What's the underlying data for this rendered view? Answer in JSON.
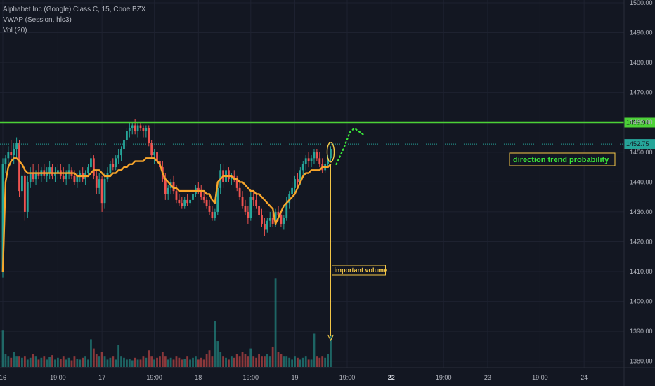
{
  "legend": {
    "symbol": "Alphabet Inc (Google) Class C, 15, Cboe BZX",
    "vwap": "VWAP (Session, hlc3)",
    "vol": "Vol (20)"
  },
  "colors": {
    "background": "#131722",
    "up": "#26a69a",
    "down": "#ef5350",
    "vwap": "#f7a52b",
    "resistance": "#4cd137",
    "dotted_level": "#26a69a",
    "annotation_green": "#39e639",
    "annotation_yellow": "#f7c948"
  },
  "chart_data": {
    "type": "candlestick",
    "price_axis": {
      "ylim": [
        1379,
        1500
      ],
      "ticks": [
        1380,
        1390,
        1400,
        1410,
        1420,
        1430,
        1440,
        1450,
        1460,
        1470,
        1480,
        1490,
        1500
      ],
      "tick_labels": [
        "1380.00",
        "1390.00",
        "1400.00",
        "1410.00",
        "1420.00",
        "1430.00",
        "1440.00",
        "1450.00",
        "1460.00",
        "1470.00",
        "1480.00",
        "1490.00",
        "1500.00"
      ]
    },
    "time_axis": {
      "ticks": [
        {
          "label": "16",
          "bold": false,
          "bar": 0
        },
        {
          "label": "19:00",
          "bold": false,
          "bar": 20
        },
        {
          "label": "17",
          "bold": false,
          "bar": 36
        },
        {
          "label": "19:00",
          "bold": false,
          "bar": 55
        },
        {
          "label": "18",
          "bold": false,
          "bar": 71
        },
        {
          "label": "19:00",
          "bold": false,
          "bar": 90
        },
        {
          "label": "19",
          "bold": false,
          "bar": 106
        },
        {
          "label": "19:00",
          "bold": false,
          "bar": 125
        },
        {
          "label": "22",
          "bold": true,
          "bar": 141
        },
        {
          "label": "19:00",
          "bold": false,
          "bar": 160
        },
        {
          "label": "23",
          "bold": false,
          "bar": 176
        },
        {
          "label": "19:00",
          "bold": false,
          "bar": 195
        },
        {
          "label": "24",
          "bold": false,
          "bar": 211
        }
      ]
    },
    "levels": [
      {
        "name": "resistance",
        "price": 1459.94,
        "label": "1459.94",
        "style": "solid"
      },
      {
        "name": "last",
        "price": 1452.75,
        "label": "1452.75",
        "style": "dotted"
      }
    ],
    "candles": [
      [
        1410,
        1448,
        1408,
        1446
      ],
      [
        1446,
        1449,
        1443,
        1448
      ],
      [
        1448,
        1452,
        1445,
        1450
      ],
      [
        1450,
        1454,
        1447,
        1449
      ],
      [
        1449,
        1453,
        1446,
        1451
      ],
      [
        1451,
        1455,
        1448,
        1453
      ],
      [
        1453,
        1454,
        1435,
        1437
      ],
      [
        1437,
        1445,
        1435,
        1442
      ],
      [
        1442,
        1445,
        1427,
        1430
      ],
      [
        1430,
        1442,
        1428,
        1440
      ],
      [
        1440,
        1445,
        1438,
        1443
      ],
      [
        1443,
        1446,
        1440,
        1441
      ],
      [
        1441,
        1444,
        1439,
        1443
      ],
      [
        1443,
        1446,
        1441,
        1442
      ],
      [
        1442,
        1445,
        1440,
        1444
      ],
      [
        1444,
        1446,
        1441,
        1442
      ],
      [
        1442,
        1445,
        1440,
        1443
      ],
      [
        1443,
        1447,
        1441,
        1445
      ],
      [
        1445,
        1446,
        1441,
        1442
      ],
      [
        1442,
        1445,
        1440,
        1443
      ],
      [
        1443,
        1446,
        1441,
        1444
      ],
      [
        1444,
        1446,
        1441,
        1442
      ],
      [
        1442,
        1445,
        1440,
        1441
      ],
      [
        1441,
        1444,
        1439,
        1443
      ],
      [
        1443,
        1446,
        1441,
        1444
      ],
      [
        1444,
        1445,
        1441,
        1442
      ],
      [
        1442,
        1444,
        1439,
        1440
      ],
      [
        1440,
        1443,
        1438,
        1442
      ],
      [
        1442,
        1444,
        1440,
        1443
      ],
      [
        1443,
        1445,
        1440,
        1441
      ],
      [
        1441,
        1444,
        1439,
        1443
      ],
      [
        1443,
        1446,
        1442,
        1445
      ],
      [
        1445,
        1450,
        1444,
        1448
      ],
      [
        1448,
        1449,
        1441,
        1442
      ],
      [
        1442,
        1444,
        1436,
        1438
      ],
      [
        1438,
        1443,
        1436,
        1441
      ],
      [
        1441,
        1442,
        1430,
        1433
      ],
      [
        1433,
        1443,
        1431,
        1441
      ],
      [
        1441,
        1445,
        1440,
        1443
      ],
      [
        1443,
        1447,
        1442,
        1446
      ],
      [
        1446,
        1448,
        1444,
        1445
      ],
      [
        1445,
        1449,
        1444,
        1448
      ],
      [
        1448,
        1451,
        1446,
        1449
      ],
      [
        1449,
        1452,
        1447,
        1451
      ],
      [
        1451,
        1455,
        1449,
        1454
      ],
      [
        1454,
        1458,
        1452,
        1457
      ],
      [
        1457,
        1460,
        1455,
        1458
      ],
      [
        1458,
        1460,
        1456,
        1459
      ],
      [
        1459,
        1461,
        1456,
        1457
      ],
      [
        1457,
        1460,
        1455,
        1459
      ],
      [
        1459,
        1460,
        1457,
        1458
      ],
      [
        1458,
        1459,
        1455,
        1457
      ],
      [
        1457,
        1459,
        1455,
        1458
      ],
      [
        1458,
        1459,
        1452,
        1453
      ],
      [
        1453,
        1454,
        1448,
        1449
      ],
      [
        1449,
        1451,
        1446,
        1450
      ],
      [
        1450,
        1451,
        1446,
        1447
      ],
      [
        1447,
        1449,
        1444,
        1445
      ],
      [
        1445,
        1447,
        1440,
        1441
      ],
      [
        1441,
        1443,
        1434,
        1436
      ],
      [
        1436,
        1439,
        1434,
        1438
      ],
      [
        1438,
        1441,
        1436,
        1440
      ],
      [
        1440,
        1442,
        1436,
        1437
      ],
      [
        1437,
        1439,
        1433,
        1434
      ],
      [
        1434,
        1436,
        1432,
        1433
      ],
      [
        1433,
        1435,
        1431,
        1432
      ],
      [
        1432,
        1435,
        1431,
        1434
      ],
      [
        1434,
        1436,
        1432,
        1433
      ],
      [
        1433,
        1435,
        1432,
        1434
      ],
      [
        1434,
        1437,
        1433,
        1436
      ],
      [
        1436,
        1439,
        1435,
        1438
      ],
      [
        1438,
        1440,
        1436,
        1437
      ],
      [
        1437,
        1439,
        1434,
        1435
      ],
      [
        1435,
        1437,
        1433,
        1434
      ],
      [
        1434,
        1435,
        1431,
        1432
      ],
      [
        1432,
        1434,
        1429,
        1430
      ],
      [
        1430,
        1432,
        1427,
        1428
      ],
      [
        1428,
        1431,
        1427,
        1430
      ],
      [
        1430,
        1440,
        1429,
        1438
      ],
      [
        1438,
        1446,
        1436,
        1444
      ],
      [
        1444,
        1446,
        1438,
        1440
      ],
      [
        1440,
        1446,
        1439,
        1444
      ],
      [
        1444,
        1445,
        1440,
        1441
      ],
      [
        1441,
        1443,
        1439,
        1442
      ],
      [
        1442,
        1444,
        1440,
        1441
      ],
      [
        1441,
        1442,
        1437,
        1438
      ],
      [
        1438,
        1440,
        1434,
        1435
      ],
      [
        1435,
        1437,
        1431,
        1432
      ],
      [
        1432,
        1434,
        1429,
        1430
      ],
      [
        1430,
        1432,
        1426,
        1428
      ],
      [
        1428,
        1437,
        1427,
        1435
      ],
      [
        1435,
        1437,
        1432,
        1434
      ],
      [
        1434,
        1436,
        1431,
        1432
      ],
      [
        1432,
        1434,
        1428,
        1429
      ],
      [
        1429,
        1431,
        1425,
        1426
      ],
      [
        1426,
        1428,
        1422,
        1424
      ],
      [
        1424,
        1428,
        1423,
        1427
      ],
      [
        1427,
        1430,
        1425,
        1428
      ],
      [
        1428,
        1430,
        1425,
        1426
      ],
      [
        1426,
        1431,
        1425,
        1430
      ],
      [
        1430,
        1432,
        1427,
        1429
      ],
      [
        1429,
        1430,
        1425,
        1426
      ],
      [
        1426,
        1429,
        1424,
        1428
      ],
      [
        1428,
        1435,
        1427,
        1433
      ],
      [
        1433,
        1437,
        1431,
        1436
      ],
      [
        1436,
        1440,
        1434,
        1438
      ],
      [
        1438,
        1442,
        1436,
        1441
      ],
      [
        1441,
        1443,
        1438,
        1440
      ],
      [
        1440,
        1445,
        1439,
        1444
      ],
      [
        1444,
        1447,
        1442,
        1446
      ],
      [
        1446,
        1449,
        1444,
        1448
      ],
      [
        1448,
        1450,
        1445,
        1447
      ],
      [
        1447,
        1449,
        1445,
        1448
      ],
      [
        1448,
        1451,
        1446,
        1450
      ],
      [
        1450,
        1451,
        1447,
        1448
      ],
      [
        1448,
        1450,
        1445,
        1446
      ],
      [
        1446,
        1448,
        1443,
        1444
      ],
      [
        1444,
        1447,
        1443,
        1446
      ],
      [
        1446,
        1449,
        1445,
        1448
      ],
      [
        1448,
        1452,
        1447,
        1451
      ]
    ],
    "vwap_note": "session VWAP plotted per candle",
    "vwap": [
      1410,
      1440,
      1445,
      1447,
      1448,
      1448,
      1447,
      1446,
      1444,
      1443,
      1443,
      1443,
      1443,
      1443,
      1443,
      1443,
      1443,
      1443,
      1443,
      1443,
      1443,
      1443,
      1443,
      1443,
      1443,
      1443,
      1443,
      1442,
      1442,
      1442,
      1442,
      1442,
      1443,
      1444,
      1444,
      1444,
      1443,
      1442,
      1442,
      1442,
      1443,
      1443,
      1444,
      1444,
      1445,
      1445,
      1446,
      1446,
      1447,
      1447,
      1447,
      1447,
      1448,
      1448,
      1448,
      1448,
      1447,
      1446,
      1443,
      1441,
      1440,
      1439,
      1438,
      1438,
      1437,
      1437,
      1437,
      1437,
      1437,
      1437,
      1437,
      1437,
      1437,
      1437,
      1436,
      1436,
      1434,
      1433,
      1440,
      1441,
      1442,
      1442,
      1442,
      1442,
      1441,
      1441,
      1440,
      1440,
      1439,
      1438,
      1437,
      1437,
      1436,
      1436,
      1435,
      1434,
      1433,
      1432,
      1431,
      1426,
      1428,
      1430,
      1432,
      1433,
      1434,
      1435,
      1436,
      1438,
      1440,
      1442,
      1443,
      1443,
      1444,
      1444,
      1444,
      1444,
      1445,
      1445,
      1445,
      1446
    ],
    "volume": [
      1,
      0.35,
      0.3,
      0.25,
      0.4,
      0.3,
      0.3,
      0.25,
      0.3,
      0.2,
      0.25,
      0.35,
      0.3,
      0.2,
      0.25,
      0.3,
      0.2,
      0.28,
      0.32,
      0.2,
      0.25,
      0.22,
      0.3,
      0.2,
      0.25,
      0.18,
      0.3,
      0.22,
      0.2,
      0.25,
      0.3,
      0.2,
      0.75,
      0.5,
      0.35,
      0.3,
      0.4,
      0.3,
      0.2,
      0.25,
      0.3,
      0.2,
      0.6,
      0.3,
      0.25,
      0.2,
      0.22,
      0.18,
      0.25,
      0.2,
      0.2,
      0.3,
      0.25,
      0.45,
      0.3,
      0.2,
      0.25,
      0.3,
      0.4,
      0.3,
      0.2,
      0.25,
      0.2,
      0.3,
      0.25,
      0.2,
      0.22,
      0.3,
      0.2,
      0.25,
      0.3,
      0.2,
      0.25,
      0.2,
      0.35,
      0.45,
      0.3,
      1.25,
      0.7,
      0.4,
      0.3,
      0.25,
      0.2,
      0.3,
      0.25,
      0.35,
      0.3,
      0.4,
      0.35,
      0.3,
      0.5,
      0.3,
      0.25,
      0.35,
      0.3,
      0.3,
      0.35,
      0.3,
      0.55,
      2.4,
      0.4,
      0.35,
      0.3,
      0.3,
      0.25,
      0.2,
      0.3,
      0.25,
      0.2,
      0.25,
      0.3,
      0.2,
      0.2,
      0.9,
      0.3,
      0.25,
      0.3,
      0.25,
      0.35,
      0.85
    ]
  },
  "annotations": {
    "direction": "direction trend probability",
    "volume": "important volume"
  }
}
